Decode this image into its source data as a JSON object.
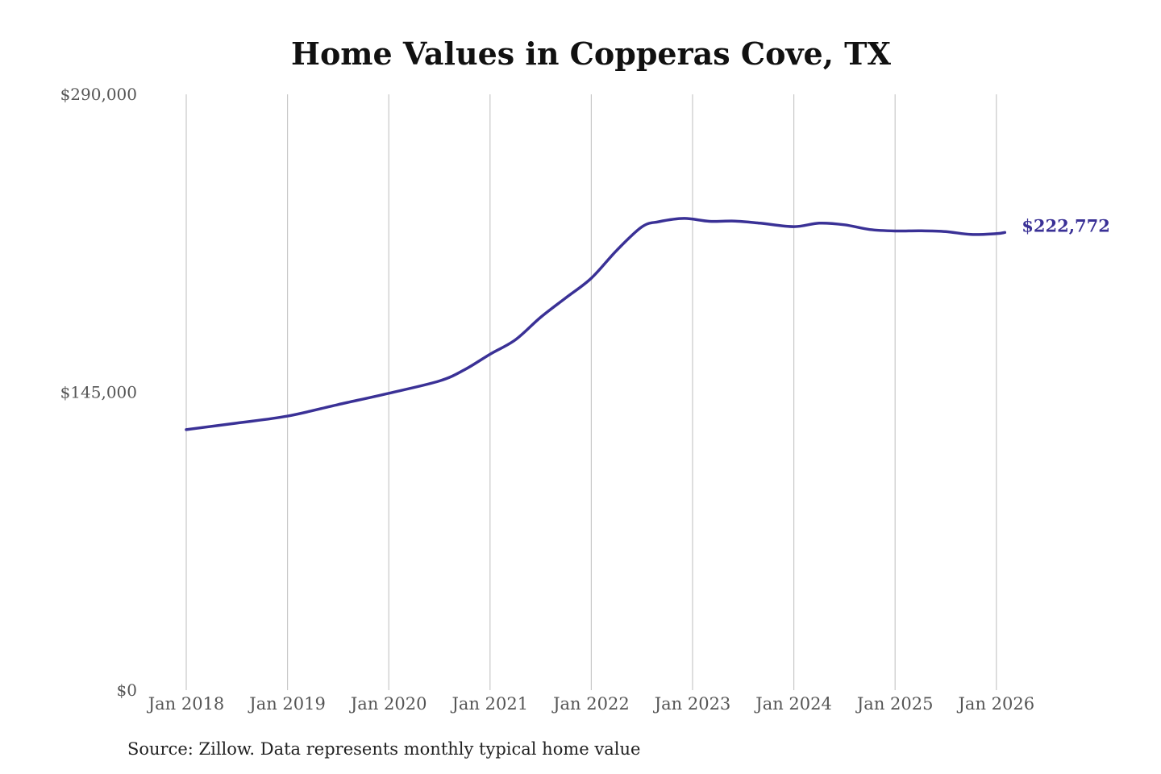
{
  "chart_data": {
    "type": "line",
    "title": "Home Values in Copperas Cove, TX",
    "source": "Source: Zillow. Data represents monthly typical home value",
    "xlabel": "",
    "ylabel": "",
    "ylim": [
      0,
      290000
    ],
    "y_ticks": [
      {
        "value": 0,
        "label": "$0"
      },
      {
        "value": 145000,
        "label": "$145,000"
      },
      {
        "value": 290000,
        "label": "$290,000"
      }
    ],
    "x_ticks": [
      {
        "value": "2018-01",
        "label": "Jan 2018"
      },
      {
        "value": "2019-01",
        "label": "Jan 2019"
      },
      {
        "value": "2020-01",
        "label": "Jan 2020"
      },
      {
        "value": "2021-01",
        "label": "Jan 2021"
      },
      {
        "value": "2022-01",
        "label": "Jan 2022"
      },
      {
        "value": "2023-01",
        "label": "Jan 2023"
      },
      {
        "value": "2024-01",
        "label": "Jan 2024"
      },
      {
        "value": "2025-01",
        "label": "Jan 2025"
      },
      {
        "value": "2026-01",
        "label": "Jan 2026"
      }
    ],
    "grid": "vertical",
    "line_color": "#3a3196",
    "end_label": "$222,772",
    "series": [
      {
        "x": [
          "2018-01",
          "2018-07",
          "2019-01",
          "2019-07",
          "2020-01",
          "2020-07",
          "2020-10",
          "2021-01",
          "2021-04",
          "2021-07",
          "2021-10",
          "2022-01",
          "2022-04",
          "2022-07",
          "2022-09",
          "2022-12",
          "2023-03",
          "2023-06",
          "2023-09",
          "2024-01",
          "2024-04",
          "2024-07",
          "2024-10",
          "2025-01",
          "2025-04",
          "2025-07",
          "2025-10",
          "2026-01",
          "2026-02"
        ],
        "y": [
          126800,
          130000,
          133400,
          139000,
          144500,
          150500,
          156000,
          163500,
          170500,
          181500,
          191000,
          200500,
          214000,
          225500,
          228000,
          229600,
          228200,
          228300,
          227300,
          225600,
          227300,
          226500,
          224200,
          223500,
          223600,
          223200,
          221800,
          222200,
          222772
        ]
      }
    ]
  }
}
